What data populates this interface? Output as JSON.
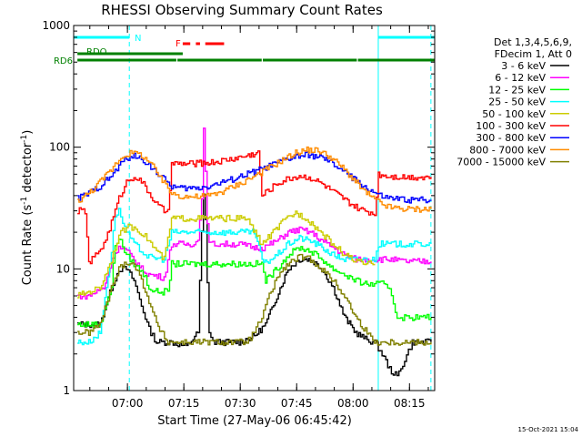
{
  "chart_data": {
    "type": "line",
    "title": "RHESSI Observing Summary Count Rates",
    "xlabel": "Start Time (27-May-06 06:45:42)",
    "ylabel": "Count Rate (s",
    "ylabel_sup": "-1",
    "ylabel_tail": " detector",
    "ylabel_close": ")",
    "yscale": "log",
    "xlim": [
      0,
      96
    ],
    "ylim": [
      1,
      1000
    ],
    "x_unit": "minutes after 06:45:42",
    "x_ticks": [
      {
        "label": "07:00",
        "x": 14.3
      },
      {
        "label": "07:15",
        "x": 29.3
      },
      {
        "label": "07:30",
        "x": 44.3
      },
      {
        "label": "07:45",
        "x": 59.3
      },
      {
        "label": "08:00",
        "x": 74.3
      },
      {
        "label": "08:15",
        "x": 89.3
      }
    ],
    "y_ticks": [
      {
        "label": "1",
        "v": 1
      },
      {
        "label": "10",
        "v": 10
      },
      {
        "label": "100",
        "v": 100
      },
      {
        "label": "1000",
        "v": 1000
      }
    ],
    "legend_header": [
      "Det 1,3,4,5,6,9,",
      "FDecim 1, Att 0"
    ],
    "series": [
      {
        "name": "3 - 6 keV",
        "color": "#000000",
        "x": [
          1,
          3,
          7,
          10,
          12,
          14,
          16,
          18,
          20,
          22,
          26,
          30,
          33,
          34,
          34.5,
          35,
          35.5,
          36,
          37,
          38,
          40,
          44,
          48,
          51,
          54,
          57,
          60,
          63,
          66,
          69,
          72,
          75,
          78,
          80,
          82,
          84,
          86,
          88,
          90,
          93,
          95
        ],
        "y": [
          3.5,
          3.5,
          3.5,
          7,
          10,
          10,
          8,
          5,
          3.2,
          2.5,
          2.5,
          2.3,
          3,
          20,
          40,
          25,
          8,
          3,
          2.5,
          2.5,
          2.5,
          2.5,
          2.8,
          3.5,
          6,
          10,
          12,
          12,
          10,
          7,
          4,
          3,
          2.6,
          2.5,
          2,
          1.5,
          1.3,
          1.8,
          2.5,
          2.5,
          2.5
        ]
      },
      {
        "name": "6 - 12 keV",
        "color": "#ff00ff",
        "x": [
          1,
          4,
          8,
          10.5,
          12,
          14,
          16,
          18,
          20,
          24,
          26,
          28,
          31,
          33,
          34,
          34.5,
          35,
          35.5,
          36,
          37,
          38,
          40,
          44,
          48,
          50.5,
          54,
          57,
          60,
          63,
          66,
          69,
          72,
          75,
          78,
          80,
          84,
          88,
          92,
          95
        ],
        "y": [
          6,
          6,
          7,
          13,
          15,
          14,
          12,
          10,
          9,
          8.5,
          16,
          16,
          16,
          17,
          40,
          140,
          60,
          25,
          16,
          16,
          16,
          16,
          16,
          15,
          15,
          17,
          20,
          21,
          20,
          17,
          15,
          13,
          12,
          12,
          12,
          12,
          11.5,
          11.5,
          11.5
        ]
      },
      {
        "name": "12 - 25 keV",
        "color": "#00ff00",
        "x": [
          1,
          4,
          7,
          10,
          11,
          12,
          14,
          16,
          18,
          19,
          20,
          22,
          25,
          26,
          28,
          31,
          34,
          37,
          40,
          43,
          48,
          50,
          51,
          54,
          57,
          60,
          63,
          66,
          69,
          72,
          75,
          78,
          80,
          82,
          84,
          86,
          88,
          91,
          93,
          95
        ],
        "y": [
          3.5,
          3.5,
          3.5,
          7,
          16,
          18,
          13,
          11,
          9.5,
          8.5,
          7,
          6.5,
          6.5,
          11,
          11,
          11,
          11,
          11,
          11,
          11,
          11,
          11,
          8,
          10,
          13,
          15,
          14,
          12,
          10,
          9,
          8,
          7.5,
          7.5,
          7.5,
          7,
          4,
          4,
          4,
          4,
          4
        ]
      },
      {
        "name": "25 - 50 keV",
        "color": "#00ffff",
        "x": [
          1,
          4,
          7,
          10,
          11,
          12,
          14,
          16,
          18,
          20,
          24,
          26,
          28,
          31,
          34,
          37,
          40,
          44,
          48,
          50.5,
          54,
          57,
          60,
          63,
          66,
          69,
          72,
          75,
          78,
          80,
          81,
          84,
          88,
          92,
          95
        ],
        "y": [
          2.5,
          2.5,
          3,
          14,
          28,
          30,
          20,
          16,
          14,
          12.5,
          12,
          20,
          20,
          20,
          20,
          20,
          20,
          20,
          20,
          11,
          13,
          16,
          18,
          17,
          15,
          13,
          12,
          12,
          12,
          12,
          16,
          16,
          16,
          16,
          16
        ]
      },
      {
        "name": "50 - 100 keV",
        "color": "#cccc00",
        "x": [
          1,
          4,
          7,
          10,
          12,
          14,
          16,
          18,
          20,
          22,
          24,
          26,
          30,
          34,
          38,
          42,
          46,
          50,
          53,
          56,
          59,
          62,
          65,
          68,
          71,
          74,
          77,
          80
        ],
        "y": [
          6,
          6.5,
          7,
          12,
          19,
          22,
          22,
          20,
          17,
          14,
          12,
          26,
          26,
          26,
          26,
          26,
          26,
          16,
          20,
          25,
          29,
          26,
          21,
          17,
          14,
          12,
          11,
          11
        ]
      },
      {
        "name": "100 - 300 keV",
        "color": "#ff0000",
        "x": [
          1,
          3,
          4,
          8,
          10,
          12,
          14,
          16,
          18,
          20,
          22,
          24,
          25,
          26,
          30,
          34,
          38,
          42,
          46,
          49,
          50,
          52,
          54,
          57,
          60,
          63,
          66,
          69,
          72,
          75,
          77,
          79,
          80,
          81,
          84,
          88,
          92,
          95
        ],
        "y": [
          30,
          30,
          11,
          16,
          24,
          38,
          52,
          58,
          52,
          42,
          34,
          30,
          29,
          73,
          73,
          74,
          76,
          80,
          85,
          90,
          40,
          45,
          50,
          55,
          58,
          56,
          50,
          43,
          37,
          32,
          30,
          29,
          28,
          60,
          58,
          57,
          57,
          57
        ]
      },
      {
        "name": "300 - 800 keV",
        "color": "#0000ff",
        "x": [
          1,
          4,
          7,
          10,
          12,
          14,
          16,
          18,
          20,
          22,
          24,
          26,
          28,
          32,
          36,
          40,
          44,
          48,
          52,
          56,
          59,
          62,
          65,
          68,
          71,
          74,
          77,
          80,
          82,
          84,
          88,
          92,
          95
        ],
        "y": [
          38,
          42,
          48,
          58,
          70,
          82,
          84,
          80,
          72,
          62,
          54,
          48,
          46,
          46,
          48,
          52,
          57,
          63,
          70,
          78,
          84,
          86,
          84,
          76,
          66,
          56,
          48,
          42,
          39,
          38,
          37,
          37,
          37
        ]
      },
      {
        "name": "800 - 7000 keV",
        "color": "#ff8c00",
        "x": [
          1,
          4,
          7,
          10,
          12,
          14,
          16,
          18,
          20,
          22,
          24,
          26,
          28,
          32,
          36,
          40,
          44,
          48,
          52,
          56,
          59,
          62,
          65,
          68,
          71,
          74,
          77,
          80,
          82,
          84,
          88,
          92,
          95
        ],
        "y": [
          36,
          42,
          52,
          66,
          80,
          88,
          90,
          86,
          76,
          62,
          50,
          42,
          40,
          39,
          40,
          44,
          50,
          58,
          68,
          80,
          90,
          95,
          94,
          84,
          70,
          56,
          44,
          37,
          34,
          32,
          31,
          31,
          31
        ]
      },
      {
        "name": "7000 - 15000 keV",
        "color": "#808000",
        "x": [
          1,
          4,
          7,
          10,
          12,
          14,
          16,
          18,
          20,
          22,
          25,
          30,
          34,
          38,
          42,
          46,
          48,
          50,
          52,
          54,
          57,
          60,
          63,
          66,
          69,
          72,
          75,
          78,
          80,
          83,
          86,
          90,
          94,
          95
        ],
        "y": [
          3,
          3,
          3.5,
          7,
          10,
          11.5,
          11,
          8,
          5.5,
          3.5,
          2.5,
          2.5,
          2.5,
          2.5,
          2.5,
          2.5,
          3,
          4,
          6,
          8.5,
          11,
          12.5,
          12,
          10,
          8,
          6,
          4,
          3,
          2.5,
          2.5,
          2.5,
          2.5,
          2.5,
          2.5
        ]
      }
    ],
    "status_bars": [
      {
        "label": "N",
        "color": "#00ffff",
        "segments": [
          [
            0,
            14.8
          ],
          [
            81,
            96
          ]
        ]
      },
      {
        "label": "F",
        "color": "#ff0000",
        "segments": [
          [
            29,
            31
          ],
          [
            32.5,
            33.6
          ],
          [
            35,
            40
          ]
        ]
      },
      {
        "label": "RDO",
        "color": "#008000",
        "segments": [
          [
            1,
            29
          ]
        ]
      },
      {
        "label": "RD6",
        "color": "#008000",
        "segments": [
          [
            1,
            27.3
          ],
          [
            27.6,
            50
          ],
          [
            50.3,
            75.3
          ],
          [
            75.6,
            96
          ]
        ]
      }
    ],
    "vlines": [
      {
        "x": 0,
        "color": "#00ffff",
        "style": "solid"
      },
      {
        "x": 14.8,
        "color": "#00ffff",
        "style": "dashed"
      },
      {
        "x": 81,
        "color": "#00ffff",
        "style": "solid"
      },
      {
        "x": 95,
        "color": "#00ffff",
        "style": "dashed"
      }
    ],
    "timestamp": "15-Oct-2021 15:04"
  }
}
